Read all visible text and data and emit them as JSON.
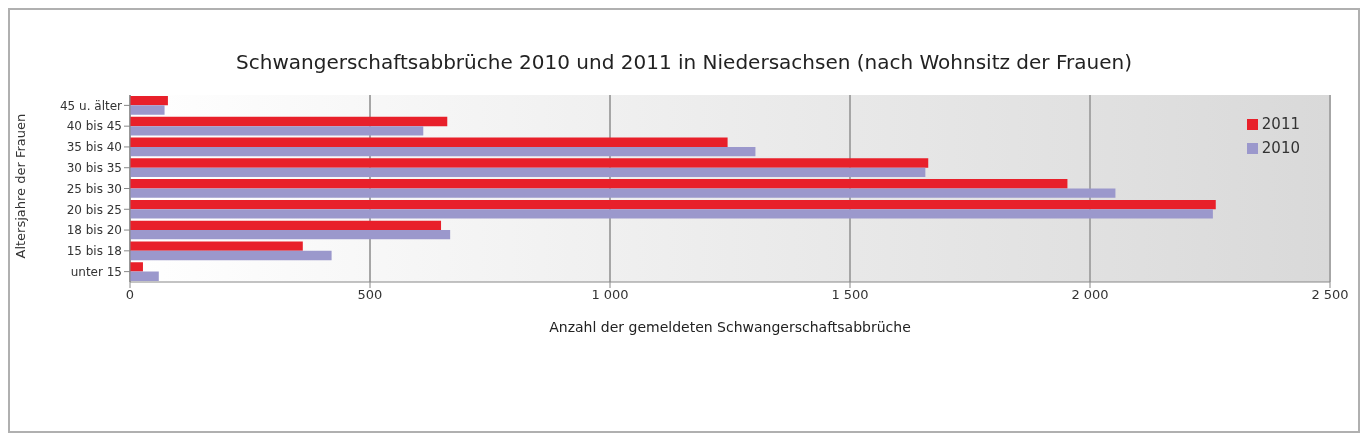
{
  "chart_data": {
    "type": "bar",
    "orientation": "horizontal",
    "title": "Schwangerschaftsabbrüche 2010 und 2011 in Niedersachsen (nach Wohnsitz der Frauen)",
    "xlabel": "Anzahl der gemeldeten Schwangerschaftsabbrüche",
    "ylabel": "Altersjahre der Frauen",
    "categories": [
      "45 u. älter",
      "40 bis 45",
      "35 bis 40",
      "30 bis 35",
      "25 bis 30",
      "20 bis 25",
      "18 bis 20",
      "15 bis 18",
      "unter 15"
    ],
    "series": [
      {
        "name": "2011",
        "color": "#e8202a",
        "values": [
          79,
          661,
          1245,
          1663,
          1953,
          2262,
          648,
          360,
          27
        ]
      },
      {
        "name": "2010",
        "color": "#9b98cc",
        "values": [
          72,
          611,
          1303,
          1657,
          2053,
          2256,
          667,
          420,
          60
        ]
      }
    ],
    "xlim": [
      0,
      2500
    ],
    "xticks": [
      0,
      500,
      {
        "value": 1000,
        "label": "1 000"
      },
      {
        "value": 1500,
        "label": "1 500"
      },
      {
        "value": 2000,
        "label": "2 000"
      },
      {
        "value": 2500,
        "label": "2 500"
      }
    ],
    "grid": "x",
    "legend": "top right"
  }
}
